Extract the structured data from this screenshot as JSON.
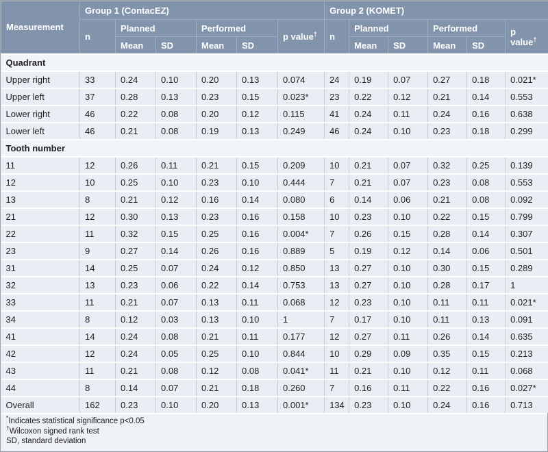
{
  "table": {
    "groups": [
      {
        "label": "Group 1 (ContacEZ)"
      },
      {
        "label": "Group 2 (KOMET)"
      }
    ],
    "headers": {
      "measurement": "Measurement",
      "n": "n",
      "planned": "Planned",
      "performed": "Performed",
      "mean": "Mean",
      "sd": "SD",
      "p_value": "p value",
      "p_value_sup": "†"
    },
    "sections": [
      {
        "label": "Quadrant",
        "rows": [
          {
            "measurement": "Upper right",
            "g1": [
              "33",
              "0.24",
              "0.10",
              "0.20",
              "0.13",
              "0.074"
            ],
            "g2": [
              "24",
              "0.19",
              "0.07",
              "0.27",
              "0.18",
              "0.021*"
            ]
          },
          {
            "measurement": "Upper left",
            "g1": [
              "37",
              "0.28",
              "0.13",
              "0.23",
              "0.15",
              "0.023*"
            ],
            "g2": [
              "23",
              "0.22",
              "0.12",
              "0.21",
              "0.14",
              "0.553"
            ]
          },
          {
            "measurement": "Lower right",
            "g1": [
              "46",
              "0.22",
              "0.08",
              "0.20",
              "0.12",
              "0.115"
            ],
            "g2": [
              "41",
              "0.24",
              "0.11",
              "0.24",
              "0.16",
              "0.638"
            ]
          },
          {
            "measurement": "Lower left",
            "g1": [
              "46",
              "0.21",
              "0.08",
              "0.19",
              "0.13",
              "0.249"
            ],
            "g2": [
              "46",
              "0.24",
              "0.10",
              "0.23",
              "0.18",
              "0.299"
            ]
          }
        ]
      },
      {
        "label": "Tooth number",
        "rows": [
          {
            "measurement": "11",
            "g1": [
              "12",
              "0.26",
              "0.11",
              "0.21",
              "0.15",
              "0.209"
            ],
            "g2": [
              "10",
              "0.21",
              "0.07",
              "0.32",
              "0.25",
              "0.139"
            ]
          },
          {
            "measurement": "12",
            "g1": [
              "10",
              "0.25",
              "0.10",
              "0.23",
              "0.10",
              "0.444"
            ],
            "g2": [
              "7",
              "0.21",
              "0.07",
              "0.23",
              "0.08",
              "0.553"
            ]
          },
          {
            "measurement": "13",
            "g1": [
              "8",
              "0.21",
              "0.12",
              "0.16",
              "0.14",
              "0.080"
            ],
            "g2": [
              "6",
              "0.14",
              "0.06",
              "0.21",
              "0.08",
              "0.092"
            ]
          },
          {
            "measurement": "21",
            "g1": [
              "12",
              "0.30",
              "0.13",
              "0.23",
              "0.16",
              "0.158"
            ],
            "g2": [
              "10",
              "0.23",
              "0.10",
              "0.22",
              "0.15",
              "0.799"
            ]
          },
          {
            "measurement": "22",
            "g1": [
              "11",
              "0.32",
              "0.15",
              "0.25",
              "0.16",
              "0.004*"
            ],
            "g2": [
              "7",
              "0.26",
              "0.15",
              "0.28",
              "0.14",
              "0.307"
            ]
          },
          {
            "measurement": "23",
            "g1": [
              "9",
              "0.27",
              "0.14",
              "0.26",
              "0.16",
              "0.889"
            ],
            "g2": [
              "5",
              "0.19",
              "0.12",
              "0.14",
              "0.06",
              "0.501"
            ]
          },
          {
            "measurement": "31",
            "g1": [
              "14",
              "0.25",
              "0.07",
              "0.24",
              "0.12",
              "0.850"
            ],
            "g2": [
              "13",
              "0.27",
              "0.10",
              "0.30",
              "0.15",
              "0.289"
            ]
          },
          {
            "measurement": "32",
            "g1": [
              "13",
              "0.23",
              "0.06",
              "0.22",
              "0.14",
              "0.753"
            ],
            "g2": [
              "13",
              "0.27",
              "0.10",
              "0.28",
              "0.17",
              "1"
            ]
          },
          {
            "measurement": "33",
            "g1": [
              "11",
              "0.21",
              "0.07",
              "0.13",
              "0.11",
              "0.068"
            ],
            "g2": [
              "12",
              "0.23",
              "0.10",
              "0.11",
              "0.11",
              "0.021*"
            ]
          },
          {
            "measurement": "34",
            "g1": [
              "8",
              "0.12",
              "0.03",
              "0.13",
              "0.10",
              "1"
            ],
            "g2": [
              "7",
              "0.17",
              "0.10",
              "0.11",
              "0.13",
              "0.091"
            ]
          },
          {
            "measurement": "41",
            "g1": [
              "14",
              "0.24",
              "0.08",
              "0.21",
              "0.11",
              "0.177"
            ],
            "g2": [
              "12",
              "0.27",
              "0.11",
              "0.26",
              "0.14",
              "0.635"
            ]
          },
          {
            "measurement": "42",
            "g1": [
              "12",
              "0.24",
              "0.05",
              "0.25",
              "0.10",
              "0.844"
            ],
            "g2": [
              "10",
              "0.29",
              "0.09",
              "0.35",
              "0.15",
              "0.213"
            ]
          },
          {
            "measurement": "43",
            "g1": [
              "11",
              "0.21",
              "0.08",
              "0.12",
              "0.08",
              "0.041*"
            ],
            "g2": [
              "11",
              "0.21",
              "0.10",
              "0.12",
              "0.11",
              "0.068"
            ]
          },
          {
            "measurement": "44",
            "g1": [
              "8",
              "0.14",
              "0.07",
              "0.21",
              "0.18",
              "0.260"
            ],
            "g2": [
              "7",
              "0.16",
              "0.11",
              "0.22",
              "0.16",
              "0.027*"
            ]
          }
        ]
      }
    ],
    "overall": {
      "measurement": "Overall",
      "g1": [
        "162",
        "0.23",
        "0.10",
        "0.20",
        "0.13",
        "0.001*"
      ],
      "g2": [
        "134",
        "0.23",
        "0.10",
        "0.24",
        "0.16",
        "0.713"
      ]
    },
    "footnotes": [
      {
        "marker": "*",
        "text": "Indicates statistical significance p<0.05"
      },
      {
        "marker": "†",
        "text": "Wilcoxon signed rank test"
      },
      {
        "marker": "",
        "text": "SD, standard deviation"
      }
    ],
    "colors": {
      "header_bg": "#8294ac",
      "header_text": "#ffffff",
      "row_bg": "#e9eef5",
      "section_bg": "#f1f4f8",
      "cell_border": "#c5cbd5",
      "row_separator": "#ffffff",
      "outer_border": "#9aa0a8"
    }
  }
}
